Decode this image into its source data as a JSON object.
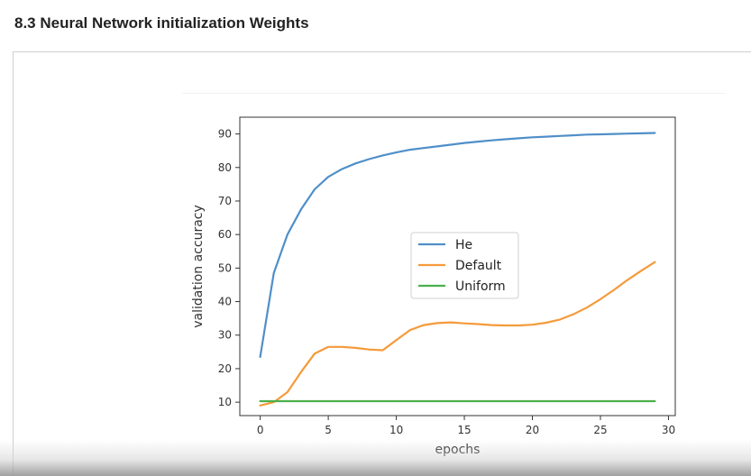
{
  "section_title": "8.3 Neural Network initialization Weights",
  "chart_data": {
    "type": "line",
    "xlabel": "epochs",
    "ylabel": "validation accuracy",
    "xlim": [
      -1.5,
      30.5
    ],
    "ylim": [
      6,
      95
    ],
    "xticks": [
      0,
      5,
      10,
      15,
      20,
      25,
      30
    ],
    "yticks": [
      10,
      20,
      30,
      40,
      50,
      60,
      70,
      80,
      90
    ],
    "grid": false,
    "legend_position": "center-right",
    "x": [
      0,
      1,
      2,
      3,
      4,
      5,
      6,
      7,
      8,
      9,
      10,
      11,
      12,
      13,
      14,
      15,
      16,
      17,
      18,
      19,
      20,
      21,
      22,
      23,
      24,
      25,
      26,
      27,
      28,
      29
    ],
    "series": [
      {
        "name": "He",
        "color": "#4f8fc8",
        "values": [
          23.5,
          48.5,
          60,
          67.5,
          73.5,
          77.2,
          79.5,
          81.2,
          82.5,
          83.6,
          84.5,
          85.3,
          85.8,
          86.3,
          86.8,
          87.3,
          87.7,
          88.1,
          88.4,
          88.7,
          89,
          89.2,
          89.4,
          89.6,
          89.8,
          89.9,
          90,
          90.1,
          90.2,
          90.3
        ]
      },
      {
        "name": "Default",
        "color": "#f59a3a",
        "values": [
          9,
          10,
          13,
          19,
          24.5,
          26.5,
          26.5,
          26.2,
          25.7,
          25.5,
          28.5,
          31.5,
          33,
          33.6,
          33.8,
          33.5,
          33.3,
          33,
          32.9,
          32.9,
          33.1,
          33.7,
          34.6,
          36.2,
          38.2,
          40.7,
          43.5,
          46.5,
          49.2,
          51.8
        ]
      },
      {
        "name": "Uniform",
        "color": "#4cb04c",
        "values": [
          10.3,
          10.3,
          10.3,
          10.3,
          10.3,
          10.3,
          10.3,
          10.3,
          10.3,
          10.3,
          10.3,
          10.3,
          10.3,
          10.3,
          10.3,
          10.3,
          10.3,
          10.3,
          10.3,
          10.3,
          10.3,
          10.3,
          10.3,
          10.3,
          10.3,
          10.3,
          10.3,
          10.3,
          10.3,
          10.3
        ]
      }
    ]
  }
}
